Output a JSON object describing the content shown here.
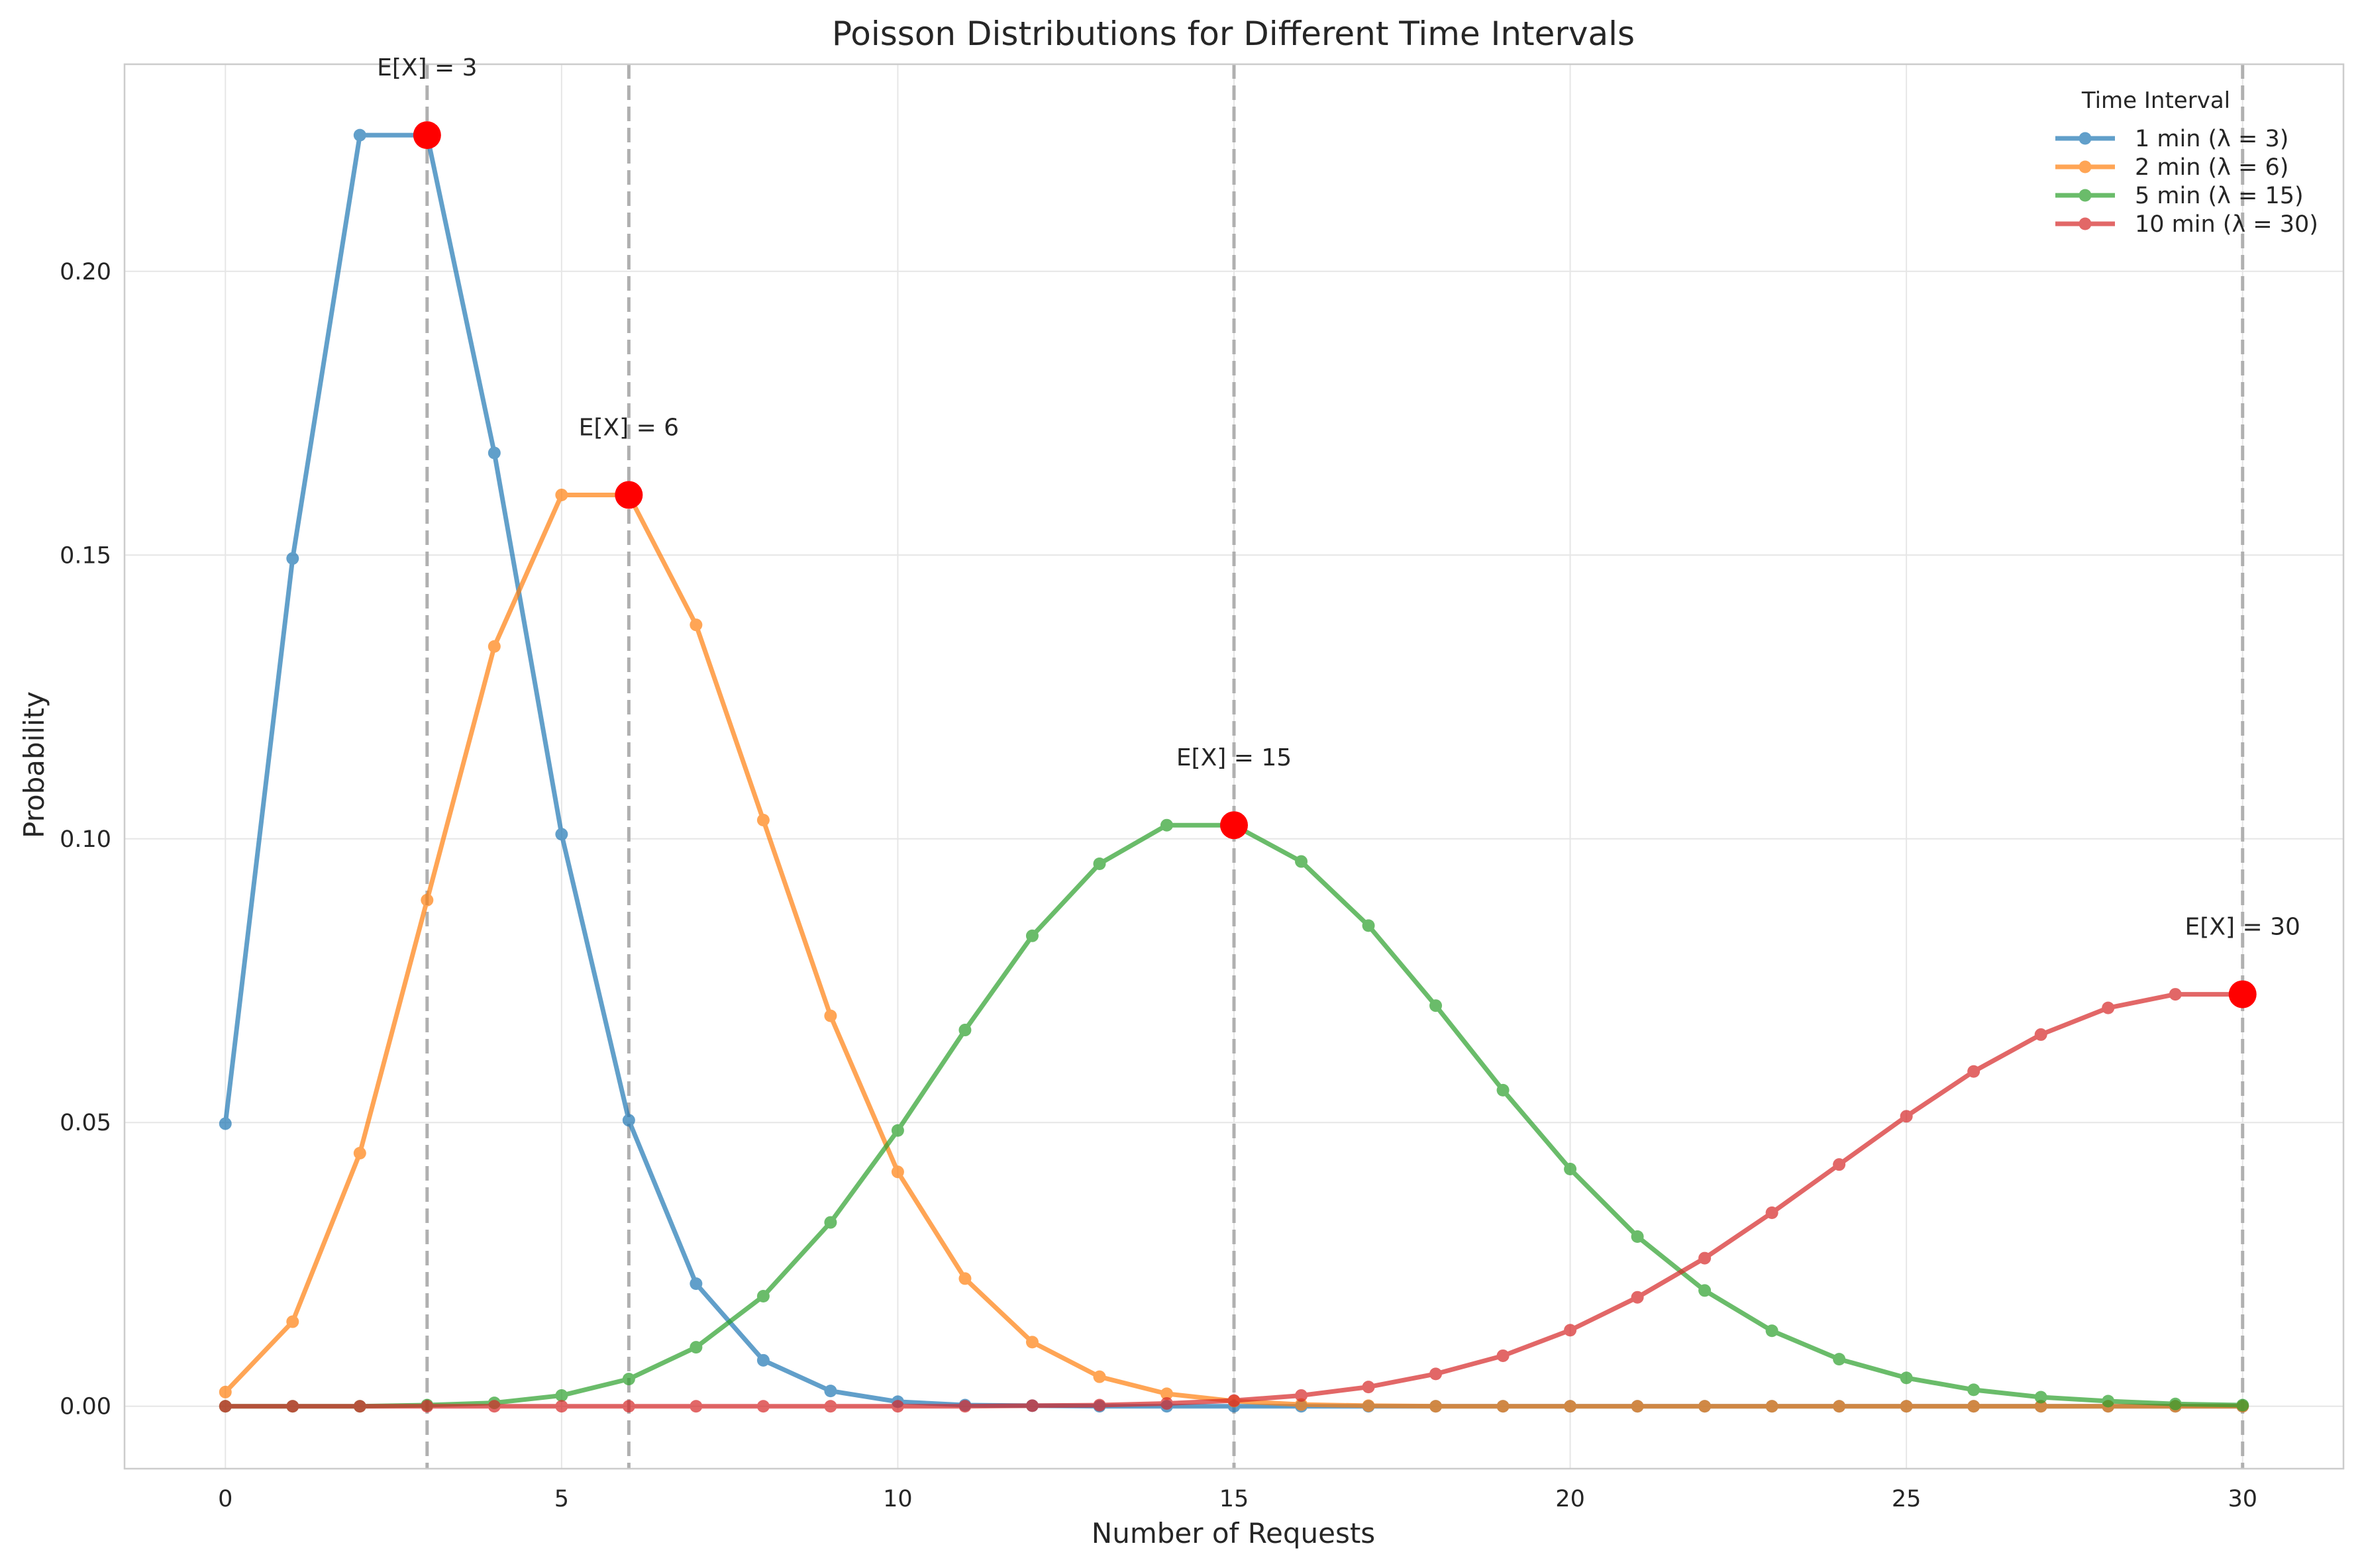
{
  "chart_data": {
    "type": "line",
    "title": "Poisson Distributions for Different Time Intervals",
    "xlabel": "Number of Requests",
    "ylabel": "Probability",
    "xlim": [
      -1.5,
      31.5
    ],
    "ylim": [
      -0.011,
      0.2365
    ],
    "xticks": [
      0,
      5,
      10,
      15,
      20,
      25,
      30
    ],
    "xtick_labels": [
      "0",
      "5",
      "10",
      "15",
      "20",
      "25",
      "30"
    ],
    "yticks": [
      0.0,
      0.05,
      0.1,
      0.15,
      0.2
    ],
    "ytick_labels": [
      "0.00",
      "0.05",
      "0.10",
      "0.15",
      "0.20"
    ],
    "grid": true,
    "legend_title": "Time Interval",
    "legend_position": "top-right",
    "x": [
      0,
      1,
      2,
      3,
      4,
      5,
      6,
      7,
      8,
      9,
      10,
      11,
      12,
      13,
      14,
      15,
      16,
      17,
      18,
      19,
      20,
      21,
      22,
      23,
      24,
      25,
      26,
      27,
      28,
      29,
      30
    ],
    "series": [
      {
        "name": "1 min (λ = 3)",
        "color": "#1f77b4",
        "lambda": 3,
        "values": [
          0.0498,
          0.1494,
          0.224,
          0.224,
          0.168,
          0.1008,
          0.0504,
          0.0216,
          0.0081,
          0.0027,
          0.0008,
          0.0002,
          0.0001,
          0.0,
          0.0,
          0.0,
          0.0,
          0.0,
          0.0,
          0.0,
          0.0,
          0.0,
          0.0,
          0.0,
          0.0,
          0.0,
          0.0,
          0.0,
          0.0,
          0.0,
          0.0
        ]
      },
      {
        "name": "2 min (λ = 6)",
        "color": "#ff7f0e",
        "lambda": 6,
        "values": [
          0.0025,
          0.0149,
          0.0446,
          0.0892,
          0.1339,
          0.1606,
          0.1606,
          0.1377,
          0.1033,
          0.0688,
          0.0413,
          0.0225,
          0.0113,
          0.0052,
          0.0022,
          0.0009,
          0.0003,
          0.0001,
          0.0,
          0.0,
          0.0,
          0.0,
          0.0,
          0.0,
          0.0,
          0.0,
          0.0,
          0.0,
          0.0,
          0.0,
          0.0
        ]
      },
      {
        "name": "5 min (λ = 15)",
        "color": "#2ca02c",
        "lambda": 15,
        "values": [
          0.0,
          0.0,
          0.0,
          0.0002,
          0.0006,
          0.0019,
          0.0048,
          0.0104,
          0.0194,
          0.0324,
          0.0486,
          0.0663,
          0.0829,
          0.0956,
          0.1024,
          0.1024,
          0.096,
          0.0847,
          0.0706,
          0.0557,
          0.0418,
          0.0299,
          0.0204,
          0.0133,
          0.0083,
          0.005,
          0.0029,
          0.0016,
          0.0009,
          0.0004,
          0.0002
        ]
      },
      {
        "name": "10 min (λ = 30)",
        "color": "#d62728",
        "lambda": 30,
        "values": [
          0.0,
          0.0,
          0.0,
          0.0,
          0.0,
          0.0,
          0.0,
          0.0,
          0.0,
          0.0,
          0.0,
          0.0,
          0.0001,
          0.0002,
          0.0005,
          0.001,
          0.0019,
          0.0034,
          0.0057,
          0.0089,
          0.0134,
          0.0192,
          0.0261,
          0.0341,
          0.0426,
          0.0511,
          0.059,
          0.0655,
          0.0702,
          0.0726,
          0.0726
        ]
      }
    ],
    "mean_markers": [
      {
        "x": 3,
        "y": 0.224,
        "label": "E[X] = 3"
      },
      {
        "x": 6,
        "y": 0.1606,
        "label": "E[X] = 6"
      },
      {
        "x": 15,
        "y": 0.1024,
        "label": "E[X] = 15"
      },
      {
        "x": 30,
        "y": 0.0726,
        "label": "E[X] = 30"
      }
    ],
    "mean_marker_color": "#ff0000",
    "vline_color": "#b0b0b0",
    "grid_color": "#e6e6e6",
    "frame_color": "#cccccc"
  }
}
